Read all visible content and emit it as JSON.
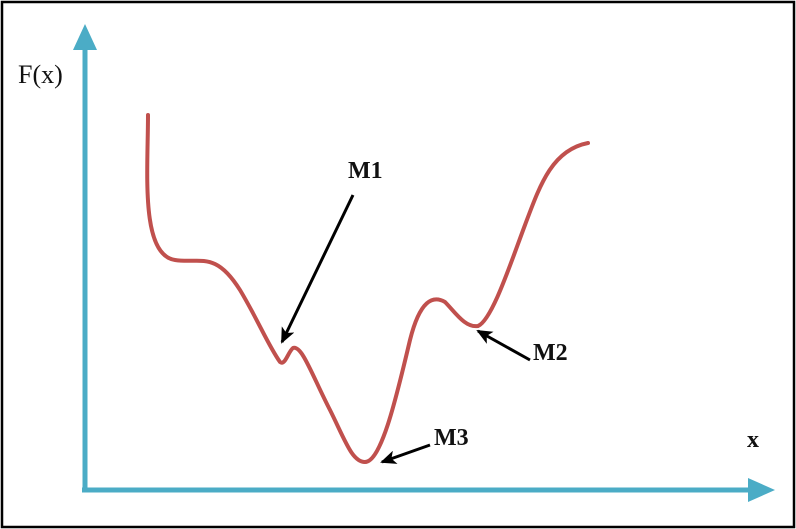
{
  "diagram": {
    "y_axis_label": "F(x)",
    "x_axis_label": "x",
    "annotations": {
      "m1": "M1",
      "m2": "M2",
      "m3": "M3"
    },
    "colors": {
      "curve": "#c0504d",
      "axis": "#4bacc6",
      "frame": "#000000",
      "arrow": "#000000"
    }
  }
}
